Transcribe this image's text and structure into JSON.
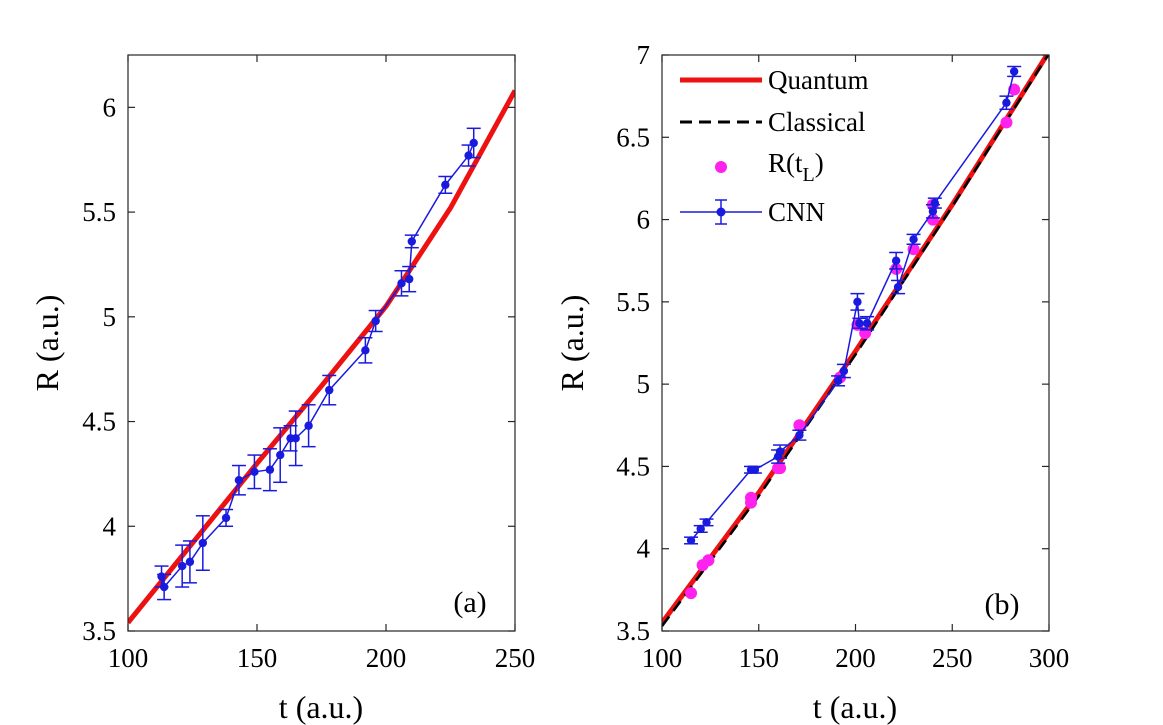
{
  "chart_data": [
    {
      "type": "line",
      "panel_label": "(a)",
      "xlabel": "t (a.u.)",
      "ylabel": "R (a.u.)",
      "xlim": [
        100,
        250
      ],
      "ylim": [
        3.5,
        6.25
      ],
      "xticks": [
        "100",
        "150",
        "200",
        "250"
      ],
      "yticks": [
        "3.5",
        "4",
        "4.5",
        "5",
        "5.5",
        "6"
      ],
      "series": [
        {
          "name": "Quantum",
          "style": "solid",
          "color": "#ee1111",
          "x": [
            100,
            125,
            150,
            175,
            200,
            225,
            250
          ],
          "y": [
            3.54,
            3.92,
            4.3,
            4.67,
            5.05,
            5.52,
            6.08
          ]
        },
        {
          "name": "CNN",
          "style": "errorbar",
          "color": "#1a1adf",
          "x": [
            113,
            114,
            121,
            124,
            129,
            138,
            143,
            149,
            155,
            159,
            163,
            165,
            170,
            178,
            192,
            196,
            206,
            209,
            210,
            223,
            232,
            234
          ],
          "y": [
            3.76,
            3.71,
            3.81,
            3.83,
            3.92,
            4.04,
            4.22,
            4.26,
            4.27,
            4.34,
            4.42,
            4.42,
            4.48,
            4.65,
            4.84,
            4.98,
            5.16,
            5.18,
            5.36,
            5.63,
            5.77,
            5.83
          ],
          "err": [
            0.05,
            0.06,
            0.1,
            0.1,
            0.13,
            0.04,
            0.07,
            0.08,
            0.1,
            0.13,
            0.06,
            0.13,
            0.1,
            0.07,
            0.06,
            0.05,
            0.06,
            0.06,
            0.03,
            0.04,
            0.05,
            0.07
          ]
        }
      ]
    },
    {
      "type": "line",
      "panel_label": "(b)",
      "xlabel": "t (a.u.)",
      "ylabel": "R (a.u.)",
      "xlim": [
        100,
        300
      ],
      "ylim": [
        3.5,
        7
      ],
      "xticks": [
        "100",
        "150",
        "200",
        "250",
        "300"
      ],
      "yticks": [
        "3.5",
        "4",
        "4.5",
        "5",
        "5.5",
        "6",
        "6.5",
        "7"
      ],
      "legend_position": "top-left",
      "series": [
        {
          "name": "Quantum",
          "style": "solid",
          "color": "#ee1111",
          "x": [
            100,
            150,
            200,
            250,
            300
          ],
          "y": [
            3.55,
            4.34,
            5.2,
            6.09,
            7.02
          ]
        },
        {
          "name": "Classical",
          "style": "dashed",
          "color": "#000000",
          "x": [
            100,
            150,
            200,
            250,
            300
          ],
          "y": [
            3.53,
            4.32,
            5.18,
            6.08,
            7.01
          ]
        },
        {
          "name": "R(t_L)",
          "style": "scatter",
          "color": "#ff22ee",
          "x": [
            115,
            121,
            124,
            146,
            146,
            160,
            161,
            171,
            192,
            201,
            205,
            221,
            230,
            240,
            240,
            278,
            282
          ],
          "y": [
            3.73,
            3.9,
            3.93,
            4.28,
            4.31,
            4.49,
            4.49,
            4.75,
            5.04,
            5.36,
            5.31,
            5.7,
            5.82,
            6.0,
            6.09,
            6.59,
            6.79
          ]
        },
        {
          "name": "CNN",
          "style": "errorbar",
          "color": "#1a1adf",
          "x": [
            115,
            120,
            123,
            146,
            148,
            160,
            161,
            171,
            191,
            194,
            201,
            202,
            206,
            221,
            222,
            230,
            240,
            241,
            278,
            282
          ],
          "y": [
            4.05,
            4.12,
            4.16,
            4.48,
            4.48,
            4.56,
            4.59,
            4.69,
            5.02,
            5.08,
            5.5,
            5.37,
            5.37,
            5.75,
            5.59,
            5.88,
            6.05,
            6.1,
            6.71,
            6.9
          ],
          "err": [
            0.02,
            0.02,
            0.02,
            0.02,
            0.02,
            0.04,
            0.04,
            0.03,
            0.03,
            0.04,
            0.05,
            0.03,
            0.04,
            0.05,
            0.04,
            0.03,
            0.04,
            0.03,
            0.04,
            0.03
          ]
        }
      ],
      "legend": [
        "Quantum",
        "Classical",
        "R(t",
        "L",
        ")",
        "CNN"
      ]
    }
  ]
}
